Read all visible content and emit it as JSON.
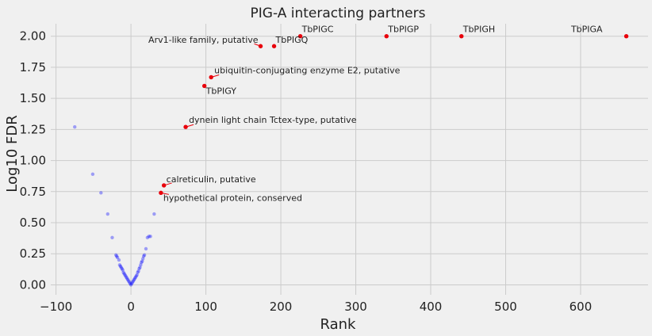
{
  "chart_data": {
    "type": "scatter",
    "title": "PIG-A interacting partners",
    "xlabel": "Rank",
    "ylabel": "Log10 FDR",
    "xlim": [
      -107,
      690
    ],
    "ylim": [
      -0.08,
      2.1
    ],
    "xticks": [
      -100,
      0,
      100,
      200,
      300,
      400,
      500,
      600
    ],
    "yticks": [
      0.0,
      0.25,
      0.5,
      0.75,
      1.0,
      1.25,
      1.5,
      1.75,
      2.0
    ],
    "xtick_labels": [
      "−100",
      "0",
      "100",
      "200",
      "300",
      "400",
      "500",
      "600"
    ],
    "ytick_labels": [
      "0.00",
      "0.25",
      "0.50",
      "0.75",
      "1.00",
      "1.25",
      "1.50",
      "1.75",
      "2.00"
    ],
    "grid": true,
    "colors": {
      "background": "#f0f0f0",
      "grid": "#cbcbcb",
      "highlight": "#e8000b",
      "background_points": "#0000ff",
      "connector": "#e8000b"
    },
    "background_points": {
      "x": [
        -75,
        -51,
        -40,
        -31,
        -25,
        -20,
        -19,
        -18,
        -16,
        -15,
        -14,
        -13,
        -12,
        -11,
        -10,
        -9,
        -8,
        -7,
        -6,
        -5,
        -4,
        -3,
        -2,
        -1,
        0,
        1,
        2,
        3,
        4,
        5,
        6,
        7,
        8,
        9,
        10,
        11,
        12,
        13,
        14,
        15,
        16,
        17,
        18,
        20,
        22,
        24,
        26,
        31
      ],
      "y": [
        1.27,
        0.89,
        0.74,
        0.57,
        0.38,
        0.24,
        0.23,
        0.22,
        0.2,
        0.16,
        0.15,
        0.14,
        0.13,
        0.12,
        0.1,
        0.09,
        0.08,
        0.07,
        0.06,
        0.05,
        0.04,
        0.03,
        0.02,
        0.01,
        0.0,
        0.01,
        0.02,
        0.03,
        0.04,
        0.05,
        0.06,
        0.07,
        0.08,
        0.1,
        0.11,
        0.13,
        0.14,
        0.16,
        0.18,
        0.19,
        0.21,
        0.23,
        0.24,
        0.29,
        0.38,
        0.39,
        0.39,
        0.57
      ]
    },
    "highlighted": [
      {
        "label": "TbPIGC",
        "x": 226,
        "y": 2.0
      },
      {
        "label": "TbPIGP",
        "x": 341,
        "y": 2.0
      },
      {
        "label": "TbPIGH",
        "x": 441,
        "y": 2.0
      },
      {
        "label": "TbPIGA",
        "x": 661,
        "y": 2.0
      },
      {
        "label": "Arv1-like family, putative",
        "x": 173,
        "y": 1.92
      },
      {
        "label": "TbPIGQ",
        "x": 191,
        "y": 1.92
      },
      {
        "label": "ubiquitin-conjugating enzyme E2, putative",
        "x": 107,
        "y": 1.67
      },
      {
        "label": "TbPIGY",
        "x": 98,
        "y": 1.6
      },
      {
        "label": "dynein light chain Tctex-type, putative",
        "x": 73,
        "y": 1.27
      },
      {
        "label": "calreticulin, putative",
        "x": 44,
        "y": 0.8
      },
      {
        "label": "hypothetical protein, conserved",
        "x": 40,
        "y": 0.74
      }
    ]
  }
}
